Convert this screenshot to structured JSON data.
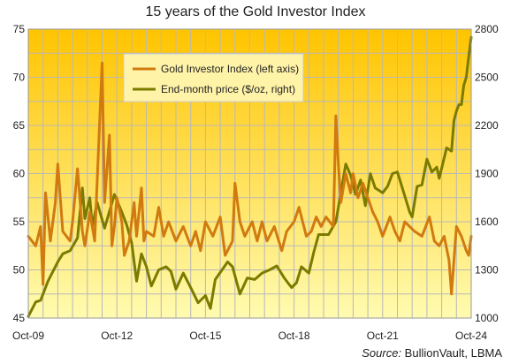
{
  "chart_data": {
    "type": "line",
    "title": "15 years of the Gold Investor Index",
    "source_label": "Source:",
    "source_value": "BullionVault, LBMA",
    "x_ticks": [
      "Oct-09",
      "Oct-12",
      "Oct-15",
      "Oct-18",
      "Oct-21",
      "Oct-24"
    ],
    "x_range": [
      "Oct-09",
      "Oct-24"
    ],
    "y_left": {
      "min": 45,
      "max": 75,
      "ticks": [
        45,
        50,
        55,
        60,
        65,
        70,
        75
      ]
    },
    "y_right": {
      "min": 1000,
      "max": 2800,
      "ticks": [
        1000,
        1300,
        1600,
        1900,
        2200,
        2500,
        2800
      ]
    },
    "grid": true,
    "legend_position": "top-center",
    "colors": {
      "index": "#d07a10",
      "price": "#7b7b00",
      "plot_top": "#ffc400",
      "plot_bottom": "#fffbb0",
      "grid": "#b8b8b8"
    },
    "series": [
      {
        "name": "Gold Investor Index (left axis)",
        "axis": "left",
        "color": "#d07a10",
        "values": [
          [
            "Oct-09",
            53.5
          ],
          [
            "Jan-10",
            52.5
          ],
          [
            "Mar-10",
            54.5
          ],
          [
            "Apr-10",
            48.5
          ],
          [
            "May-10",
            58.0
          ],
          [
            "Jul-10",
            53.0
          ],
          [
            "Sep-10",
            57.0
          ],
          [
            "Oct-10",
            61.0
          ],
          [
            "Dec-10",
            54.0
          ],
          [
            "Mar-11",
            53.0
          ],
          [
            "Apr-11",
            55.0
          ],
          [
            "Jun-11",
            60.5
          ],
          [
            "Aug-11",
            54.0
          ],
          [
            "Sep-11",
            52.5
          ],
          [
            "Nov-11",
            56.0
          ],
          [
            "Jan-12",
            53.0
          ],
          [
            "Apr-12",
            71.5
          ],
          [
            "May-12",
            57.0
          ],
          [
            "Jul-12",
            64.0
          ],
          [
            "Aug-12",
            52.5
          ],
          [
            "Sep-12",
            54.5
          ],
          [
            "Oct-12",
            57.5
          ],
          [
            "Dec-12",
            55.0
          ],
          [
            "Jan-13",
            51.5
          ],
          [
            "Mar-13",
            53.0
          ],
          [
            "May-13",
            57.0
          ],
          [
            "Jun-13",
            53.5
          ],
          [
            "Aug-13",
            58.5
          ],
          [
            "Sep-13",
            53.0
          ],
          [
            "Oct-13",
            54.0
          ],
          [
            "Jan-14",
            53.5
          ],
          [
            "Mar-14",
            56.5
          ],
          [
            "May-14",
            53.5
          ],
          [
            "Jul-14",
            55.0
          ],
          [
            "Oct-14",
            53.0
          ],
          [
            "Jan-15",
            54.5
          ],
          [
            "Apr-15",
            52.5
          ],
          [
            "Jun-15",
            54.0
          ],
          [
            "Aug-15",
            52.0
          ],
          [
            "Oct-15",
            55.0
          ],
          [
            "Jan-16",
            53.5
          ],
          [
            "Apr-16",
            55.5
          ],
          [
            "Jun-16",
            51.5
          ],
          [
            "Sep-16",
            53.0
          ],
          [
            "Oct-16",
            59.0
          ],
          [
            "Dec-16",
            55.0
          ],
          [
            "Feb-17",
            53.5
          ],
          [
            "May-17",
            55.0
          ],
          [
            "Jul-17",
            53.0
          ],
          [
            "Sep-17",
            55.0
          ],
          [
            "Nov-17",
            53.0
          ],
          [
            "Feb-18",
            54.5
          ],
          [
            "May-18",
            52.0
          ],
          [
            "Jul-18",
            54.0
          ],
          [
            "Oct-18",
            55.0
          ],
          [
            "Dec-18",
            56.5
          ],
          [
            "Mar-19",
            53.5
          ],
          [
            "May-19",
            54.0
          ],
          [
            "Jul-19",
            55.5
          ],
          [
            "Sep-19",
            54.5
          ],
          [
            "Nov-19",
            55.5
          ],
          [
            "Feb-20",
            54.5
          ],
          [
            "Mar-20",
            66.0
          ],
          [
            "Apr-20",
            61.0
          ],
          [
            "May-20",
            57.0
          ],
          [
            "Jul-20",
            60.0
          ],
          [
            "Sep-20",
            58.0
          ],
          [
            "Oct-20",
            60.0
          ],
          [
            "Dec-20",
            57.5
          ],
          [
            "Feb-21",
            59.0
          ],
          [
            "Apr-21",
            57.5
          ],
          [
            "Jun-21",
            56.0
          ],
          [
            "Aug-21",
            55.0
          ],
          [
            "Oct-21",
            53.5
          ],
          [
            "Jan-22",
            55.5
          ],
          [
            "Mar-22",
            54.0
          ],
          [
            "May-22",
            53.0
          ],
          [
            "Jul-22",
            55.0
          ],
          [
            "Sep-22",
            54.5
          ],
          [
            "Nov-22",
            54.0
          ],
          [
            "Feb-23",
            53.5
          ],
          [
            "May-23",
            55.5
          ],
          [
            "Jul-23",
            53.0
          ],
          [
            "Sep-23",
            52.5
          ],
          [
            "Nov-23",
            53.5
          ],
          [
            "Jan-24",
            51.0
          ],
          [
            "Feb-24",
            47.5
          ],
          [
            "Apr-24",
            54.5
          ],
          [
            "Jun-24",
            53.5
          ],
          [
            "Aug-24",
            52.0
          ],
          [
            "Sep-24",
            51.5
          ],
          [
            "Oct-24",
            53.5
          ]
        ]
      },
      {
        "name": "End-month price ($/oz, right)",
        "axis": "right",
        "color": "#7b7b00",
        "values": [
          [
            "Oct-09",
            1010
          ],
          [
            "Jan-10",
            1100
          ],
          [
            "Mar-10",
            1110
          ],
          [
            "Jun-10",
            1230
          ],
          [
            "Oct-10",
            1350
          ],
          [
            "Dec-10",
            1400
          ],
          [
            "Mar-11",
            1420
          ],
          [
            "Jun-11",
            1500
          ],
          [
            "Aug-11",
            1810
          ],
          [
            "Sep-11",
            1620
          ],
          [
            "Nov-11",
            1750
          ],
          [
            "Dec-11",
            1570
          ],
          [
            "Feb-12",
            1720
          ],
          [
            "May-12",
            1560
          ],
          [
            "Sep-12",
            1770
          ],
          [
            "Dec-12",
            1660
          ],
          [
            "Feb-13",
            1580
          ],
          [
            "Apr-13",
            1470
          ],
          [
            "Jun-13",
            1230
          ],
          [
            "Aug-13",
            1400
          ],
          [
            "Oct-13",
            1320
          ],
          [
            "Dec-13",
            1200
          ],
          [
            "Mar-14",
            1300
          ],
          [
            "Jun-14",
            1320
          ],
          [
            "Aug-14",
            1290
          ],
          [
            "Oct-14",
            1180
          ],
          [
            "Jan-15",
            1280
          ],
          [
            "Apr-15",
            1190
          ],
          [
            "Jul-15",
            1095
          ],
          [
            "Oct-15",
            1140
          ],
          [
            "Dec-15",
            1060
          ],
          [
            "Feb-16",
            1240
          ],
          [
            "Jul-16",
            1350
          ],
          [
            "Sep-16",
            1320
          ],
          [
            "Dec-16",
            1150
          ],
          [
            "Mar-17",
            1250
          ],
          [
            "Jun-17",
            1240
          ],
          [
            "Sep-17",
            1280
          ],
          [
            "Dec-17",
            1300
          ],
          [
            "Mar-18",
            1325
          ],
          [
            "Jun-18",
            1250
          ],
          [
            "Sep-18",
            1190
          ],
          [
            "Nov-18",
            1220
          ],
          [
            "Jan-19",
            1320
          ],
          [
            "Apr-19",
            1280
          ],
          [
            "Jun-19",
            1410
          ],
          [
            "Aug-19",
            1520
          ],
          [
            "Dec-19",
            1520
          ],
          [
            "Mar-20",
            1600
          ],
          [
            "Jul-20",
            1960
          ],
          [
            "Sep-20",
            1890
          ],
          [
            "Nov-20",
            1770
          ],
          [
            "Jan-21",
            1860
          ],
          [
            "Mar-21",
            1700
          ],
          [
            "May-21",
            1900
          ],
          [
            "Jul-21",
            1810
          ],
          [
            "Oct-21",
            1780
          ],
          [
            "Dec-21",
            1820
          ],
          [
            "Feb-22",
            1900
          ],
          [
            "Apr-22",
            1910
          ],
          [
            "Jun-22",
            1810
          ],
          [
            "Sep-22",
            1660
          ],
          [
            "Oct-22",
            1630
          ],
          [
            "Dec-22",
            1820
          ],
          [
            "Feb-23",
            1830
          ],
          [
            "Apr-23",
            1990
          ],
          [
            "Jun-23",
            1910
          ],
          [
            "Aug-23",
            1940
          ],
          [
            "Sep-23",
            1870
          ],
          [
            "Dec-23",
            2060
          ],
          [
            "Feb-24",
            2040
          ],
          [
            "Mar-24",
            2230
          ],
          [
            "Apr-24",
            2290
          ],
          [
            "May-24",
            2330
          ],
          [
            "Jun-24",
            2330
          ],
          [
            "Jul-24",
            2450
          ],
          [
            "Aug-24",
            2500
          ],
          [
            "Sep-24",
            2630
          ],
          [
            "Oct-24",
            2750
          ]
        ]
      }
    ]
  }
}
